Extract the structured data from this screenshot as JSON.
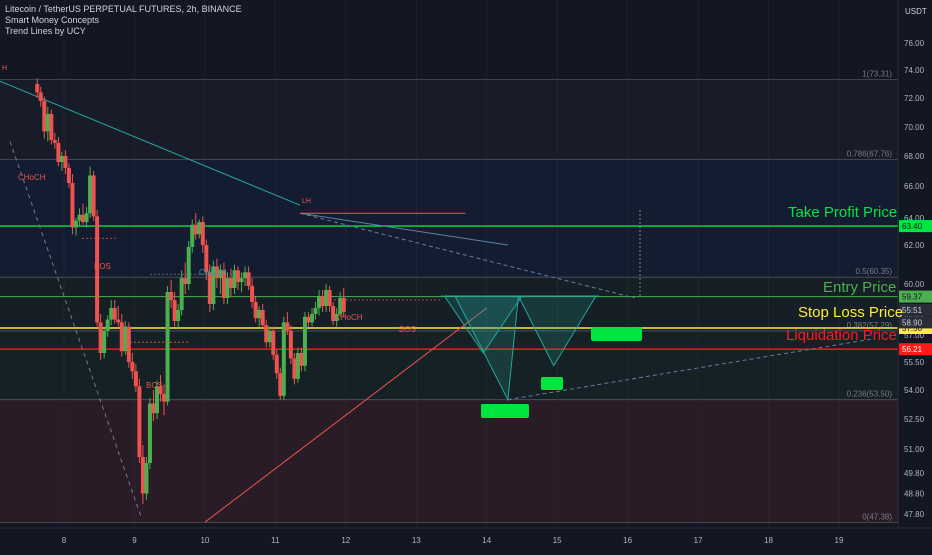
{
  "legend": {
    "symbol": "Litecoin / TetherUS PERPETUAL FUTURES, 2h, BINANCE",
    "indicator_1": "Smart Money Concepts",
    "indicator_2": "Trend Lines by UCY"
  },
  "colors": {
    "background": "#131722",
    "up": "#4caf50",
    "down": "#ef5350",
    "take_profit": "#00e640",
    "entry": "#4caf50",
    "stop_loss": "#ffeb3b",
    "liquidation": "#ff1a1a",
    "fib": "#787b86",
    "pattern": "#26a69a"
  },
  "price_axis": {
    "unit": "USDT"
  },
  "annotations": {
    "take_profit": "Take Profit Price",
    "entry": "Entry Price",
    "stop_loss": "Stop Loss Price",
    "liquidation": "Liquidation Price",
    "choch_1": "CHoCH",
    "choch_2": "CHoCH",
    "choch_3": "CHoCH",
    "bos_1": "BOS",
    "bos_2": "BOS",
    "bos_3": "BOS",
    "lh": "LH",
    "hh": "H"
  },
  "chart_data": {
    "type": "candlestick",
    "title": "Litecoin / TetherUS PERPETUAL FUTURES, 2h, BINANCE",
    "x_ticks": [
      "8",
      "9",
      "10",
      "11",
      "12",
      "13",
      "14",
      "15",
      "16",
      "17",
      "18",
      "19"
    ],
    "y_ticks": [
      47.8,
      48.8,
      49.8,
      51.0,
      52.5,
      54.0,
      55.5,
      57.0,
      58.5,
      60.0,
      62.0,
      64.0,
      66.0,
      68.0,
      70.0,
      72.0,
      74.0,
      76.0
    ],
    "y_range": [
      47.0,
      77.6
    ],
    "fib_levels": [
      {
        "label": "1(73.31)",
        "ratio": 1,
        "price": 73.31
      },
      {
        "label": "0.786(67.76)",
        "ratio": 0.786,
        "price": 67.76
      },
      {
        "label": "0.5(60.35)",
        "ratio": 0.5,
        "price": 60.35
      },
      {
        "label": "0.382(57.29)",
        "ratio": 0.382,
        "price": 57.29
      },
      {
        "label": "0.236(53.50)",
        "ratio": 0.236,
        "price": 53.5
      },
      {
        "label": "0(47.38)",
        "ratio": 0,
        "price": 47.38
      }
    ],
    "levels": [
      {
        "name": "Take Profit Price",
        "price": 63.4,
        "label": "63.40"
      },
      {
        "name": "Entry Price",
        "price": 59.37,
        "label": "59.37"
      },
      {
        "name": "Stop Loss Price",
        "price": 57.5,
        "label": "57.50"
      },
      {
        "name": "Liquidation Price",
        "price": 56.21,
        "label": "56.21"
      }
    ],
    "price_labels": [
      {
        "price": 59.37,
        "label": "59.37",
        "color": "#4caf50"
      },
      {
        "price": 58.7,
        "label": "55:51",
        "color": "#2a2e39"
      },
      {
        "price": 57.9,
        "label": "58.90",
        "color": "#2a2e39"
      }
    ],
    "candles": [
      {
        "x": 7.62,
        "o": 73.0,
        "h": 73.4,
        "l": 72.0,
        "c": 72.4
      },
      {
        "x": 7.67,
        "o": 72.4,
        "h": 72.8,
        "l": 71.4,
        "c": 71.8
      },
      {
        "x": 7.72,
        "o": 71.8,
        "h": 72.1,
        "l": 69.2,
        "c": 69.7
      },
      {
        "x": 7.77,
        "o": 69.7,
        "h": 71.4,
        "l": 69.0,
        "c": 70.9
      },
      {
        "x": 7.82,
        "o": 70.9,
        "h": 71.2,
        "l": 68.8,
        "c": 69.1
      },
      {
        "x": 7.87,
        "o": 69.1,
        "h": 69.6,
        "l": 68.5,
        "c": 68.9
      },
      {
        "x": 7.92,
        "o": 68.9,
        "h": 69.3,
        "l": 67.3,
        "c": 67.6
      },
      {
        "x": 7.97,
        "o": 67.6,
        "h": 68.3,
        "l": 67.0,
        "c": 68.0
      },
      {
        "x": 8.02,
        "o": 68.0,
        "h": 68.4,
        "l": 66.8,
        "c": 67.2
      },
      {
        "x": 8.07,
        "o": 67.2,
        "h": 67.5,
        "l": 65.9,
        "c": 66.2
      },
      {
        "x": 8.12,
        "o": 66.2,
        "h": 66.8,
        "l": 62.8,
        "c": 63.3
      },
      {
        "x": 8.17,
        "o": 63.3,
        "h": 64.0,
        "l": 62.7,
        "c": 63.8
      },
      {
        "x": 8.22,
        "o": 63.8,
        "h": 64.6,
        "l": 63.4,
        "c": 64.2
      },
      {
        "x": 8.27,
        "o": 64.2,
        "h": 64.9,
        "l": 63.5,
        "c": 63.7
      },
      {
        "x": 8.32,
        "o": 63.7,
        "h": 64.7,
        "l": 63.3,
        "c": 64.3
      },
      {
        "x": 8.37,
        "o": 64.3,
        "h": 67.3,
        "l": 64.0,
        "c": 66.7
      },
      {
        "x": 8.42,
        "o": 66.7,
        "h": 67.0,
        "l": 63.8,
        "c": 64.1
      },
      {
        "x": 8.47,
        "o": 64.1,
        "h": 64.5,
        "l": 57.6,
        "c": 57.9
      },
      {
        "x": 8.52,
        "o": 57.9,
        "h": 58.5,
        "l": 55.6,
        "c": 56.0
      },
      {
        "x": 8.57,
        "o": 56.0,
        "h": 57.6,
        "l": 55.7,
        "c": 57.3
      },
      {
        "x": 8.62,
        "o": 57.3,
        "h": 58.4,
        "l": 56.9,
        "c": 58.1
      },
      {
        "x": 8.67,
        "o": 58.1,
        "h": 59.2,
        "l": 57.7,
        "c": 58.8
      },
      {
        "x": 8.72,
        "o": 58.8,
        "h": 59.2,
        "l": 57.8,
        "c": 58.1
      },
      {
        "x": 8.77,
        "o": 58.1,
        "h": 58.9,
        "l": 57.6,
        "c": 57.9
      },
      {
        "x": 8.82,
        "o": 57.9,
        "h": 58.5,
        "l": 55.8,
        "c": 56.1
      },
      {
        "x": 8.87,
        "o": 56.1,
        "h": 58.0,
        "l": 55.9,
        "c": 57.6
      },
      {
        "x": 8.92,
        "o": 57.6,
        "h": 57.9,
        "l": 55.2,
        "c": 55.5
      },
      {
        "x": 8.97,
        "o": 55.5,
        "h": 56.0,
        "l": 54.6,
        "c": 55.0
      },
      {
        "x": 9.02,
        "o": 55.0,
        "h": 55.4,
        "l": 53.9,
        "c": 54.2
      },
      {
        "x": 9.07,
        "o": 54.2,
        "h": 54.6,
        "l": 50.3,
        "c": 50.6
      },
      {
        "x": 9.12,
        "o": 50.6,
        "h": 51.2,
        "l": 48.3,
        "c": 48.8
      },
      {
        "x": 9.17,
        "o": 48.8,
        "h": 50.6,
        "l": 48.5,
        "c": 50.3
      },
      {
        "x": 9.22,
        "o": 50.3,
        "h": 53.6,
        "l": 50.0,
        "c": 53.3
      },
      {
        "x": 9.27,
        "o": 53.3,
        "h": 54.0,
        "l": 52.4,
        "c": 52.8
      },
      {
        "x": 9.32,
        "o": 52.8,
        "h": 54.5,
        "l": 52.5,
        "c": 54.2
      },
      {
        "x": 9.37,
        "o": 54.2,
        "h": 54.8,
        "l": 53.4,
        "c": 53.8
      },
      {
        "x": 9.42,
        "o": 53.8,
        "h": 54.3,
        "l": 52.7,
        "c": 53.4
      },
      {
        "x": 9.47,
        "o": 53.4,
        "h": 59.9,
        "l": 53.2,
        "c": 59.6
      },
      {
        "x": 9.52,
        "o": 59.6,
        "h": 60.2,
        "l": 58.8,
        "c": 59.2
      },
      {
        "x": 9.57,
        "o": 59.2,
        "h": 59.6,
        "l": 57.6,
        "c": 58.0
      },
      {
        "x": 9.62,
        "o": 58.0,
        "h": 59.0,
        "l": 57.4,
        "c": 58.7
      },
      {
        "x": 9.67,
        "o": 58.7,
        "h": 60.7,
        "l": 58.4,
        "c": 60.3
      },
      {
        "x": 9.72,
        "o": 60.3,
        "h": 61.1,
        "l": 59.5,
        "c": 60.0
      },
      {
        "x": 9.77,
        "o": 60.0,
        "h": 62.3,
        "l": 59.7,
        "c": 61.9
      },
      {
        "x": 9.82,
        "o": 61.9,
        "h": 63.9,
        "l": 61.6,
        "c": 63.5
      },
      {
        "x": 9.87,
        "o": 63.5,
        "h": 64.3,
        "l": 62.4,
        "c": 62.8
      },
      {
        "x": 9.92,
        "o": 62.8,
        "h": 63.9,
        "l": 62.5,
        "c": 63.7
      },
      {
        "x": 9.97,
        "o": 63.7,
        "h": 64.1,
        "l": 61.6,
        "c": 62.0
      },
      {
        "x": 10.02,
        "o": 62.0,
        "h": 62.4,
        "l": 60.2,
        "c": 60.6
      },
      {
        "x": 10.07,
        "o": 60.6,
        "h": 61.0,
        "l": 58.6,
        "c": 59.0
      },
      {
        "x": 10.12,
        "o": 59.0,
        "h": 61.2,
        "l": 58.7,
        "c": 60.9
      },
      {
        "x": 10.17,
        "o": 60.9,
        "h": 61.3,
        "l": 59.8,
        "c": 60.3
      },
      {
        "x": 10.22,
        "o": 60.3,
        "h": 61.0,
        "l": 59.5,
        "c": 60.7
      },
      {
        "x": 10.27,
        "o": 60.7,
        "h": 61.1,
        "l": 59.0,
        "c": 59.3
      },
      {
        "x": 10.32,
        "o": 59.3,
        "h": 60.6,
        "l": 59.0,
        "c": 60.3
      },
      {
        "x": 10.37,
        "o": 60.3,
        "h": 60.8,
        "l": 59.4,
        "c": 59.8
      },
      {
        "x": 10.42,
        "o": 59.8,
        "h": 61.0,
        "l": 59.5,
        "c": 60.7
      },
      {
        "x": 10.47,
        "o": 60.7,
        "h": 60.9,
        "l": 59.7,
        "c": 60.1
      },
      {
        "x": 10.52,
        "o": 60.1,
        "h": 60.6,
        "l": 59.6,
        "c": 60.3
      },
      {
        "x": 10.57,
        "o": 60.3,
        "h": 60.9,
        "l": 59.9,
        "c": 60.6
      },
      {
        "x": 10.62,
        "o": 60.6,
        "h": 60.9,
        "l": 59.7,
        "c": 59.9
      },
      {
        "x": 10.67,
        "o": 59.9,
        "h": 60.3,
        "l": 58.8,
        "c": 59.1
      },
      {
        "x": 10.72,
        "o": 59.1,
        "h": 59.4,
        "l": 57.9,
        "c": 58.2
      },
      {
        "x": 10.77,
        "o": 58.2,
        "h": 58.9,
        "l": 57.6,
        "c": 58.7
      },
      {
        "x": 10.82,
        "o": 58.7,
        "h": 59.0,
        "l": 57.4,
        "c": 57.7
      },
      {
        "x": 10.87,
        "o": 57.7,
        "h": 58.1,
        "l": 56.3,
        "c": 56.6
      },
      {
        "x": 10.92,
        "o": 56.6,
        "h": 57.6,
        "l": 56.3,
        "c": 57.3
      },
      {
        "x": 10.97,
        "o": 57.3,
        "h": 57.6,
        "l": 55.6,
        "c": 55.9
      },
      {
        "x": 11.02,
        "o": 55.9,
        "h": 56.2,
        "l": 54.6,
        "c": 54.9
      },
      {
        "x": 11.07,
        "o": 54.9,
        "h": 55.2,
        "l": 53.5,
        "c": 53.7
      },
      {
        "x": 11.12,
        "o": 53.7,
        "h": 58.3,
        "l": 53.5,
        "c": 57.9
      },
      {
        "x": 11.17,
        "o": 57.9,
        "h": 58.6,
        "l": 57.0,
        "c": 57.3
      },
      {
        "x": 11.22,
        "o": 57.3,
        "h": 57.7,
        "l": 55.4,
        "c": 55.7
      },
      {
        "x": 11.27,
        "o": 55.7,
        "h": 56.0,
        "l": 54.3,
        "c": 54.6
      },
      {
        "x": 11.32,
        "o": 54.6,
        "h": 56.3,
        "l": 54.4,
        "c": 56.0
      },
      {
        "x": 11.37,
        "o": 56.0,
        "h": 56.3,
        "l": 55.0,
        "c": 55.3
      },
      {
        "x": 11.42,
        "o": 55.3,
        "h": 58.6,
        "l": 55.0,
        "c": 58.3
      },
      {
        "x": 11.47,
        "o": 58.3,
        "h": 58.6,
        "l": 57.6,
        "c": 57.9
      },
      {
        "x": 11.52,
        "o": 57.9,
        "h": 58.8,
        "l": 57.6,
        "c": 58.5
      },
      {
        "x": 11.57,
        "o": 58.5,
        "h": 59.1,
        "l": 58.1,
        "c": 58.8
      },
      {
        "x": 11.62,
        "o": 58.8,
        "h": 59.7,
        "l": 58.4,
        "c": 59.4
      },
      {
        "x": 11.67,
        "o": 59.4,
        "h": 59.7,
        "l": 58.6,
        "c": 58.9
      },
      {
        "x": 11.72,
        "o": 58.9,
        "h": 60.0,
        "l": 58.6,
        "c": 59.7
      },
      {
        "x": 11.77,
        "o": 59.7,
        "h": 59.9,
        "l": 58.6,
        "c": 58.9
      },
      {
        "x": 11.82,
        "o": 58.9,
        "h": 59.1,
        "l": 57.7,
        "c": 58.0
      },
      {
        "x": 11.87,
        "o": 58.0,
        "h": 58.8,
        "l": 57.6,
        "c": 58.5
      },
      {
        "x": 11.92,
        "o": 58.5,
        "h": 59.6,
        "l": 58.3,
        "c": 59.3
      },
      {
        "x": 11.97,
        "o": 59.3,
        "h": 59.8,
        "l": 58.3,
        "c": 58.6
      }
    ]
  }
}
